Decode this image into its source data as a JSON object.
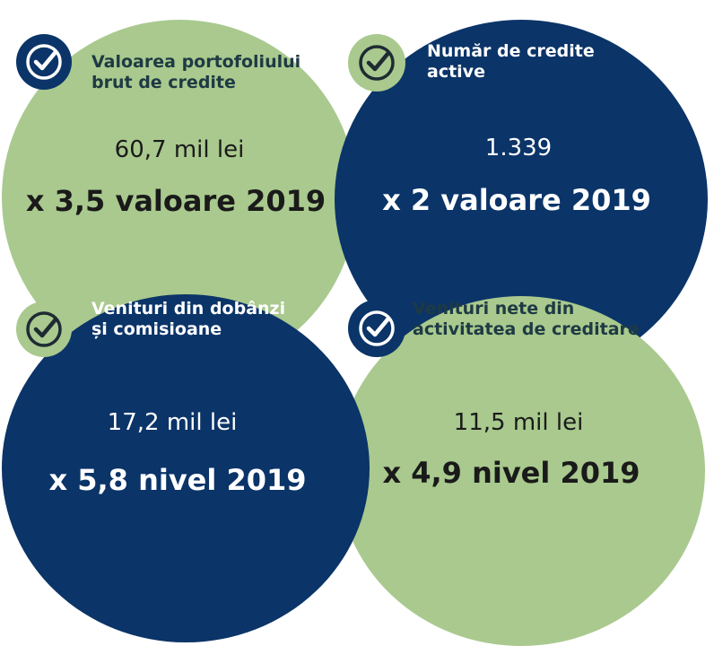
{
  "colors": {
    "green": "#a9c98e",
    "navy": "#0b3468"
  },
  "cards": [
    {
      "title_line1": "Valoarea portofoliului",
      "title_line2": "brut de credite",
      "value": "60,7 mil lei",
      "multiplier": "x 3,5 valoare 2019"
    },
    {
      "title_line1": "Număr de credite",
      "title_line2": "active",
      "value": "1.339",
      "multiplier": "x 2 valoare 2019"
    },
    {
      "title_line1": "Venituri din dobânzi",
      "title_line2": "și comisioane",
      "value": "17,2 mil lei",
      "multiplier": "x 5,8 nivel 2019"
    },
    {
      "title_line1": "Venituri nete din",
      "title_line2": "activitatea de creditare",
      "value": "11,5 mil lei",
      "multiplier": "x 4,9 nivel 2019"
    }
  ]
}
